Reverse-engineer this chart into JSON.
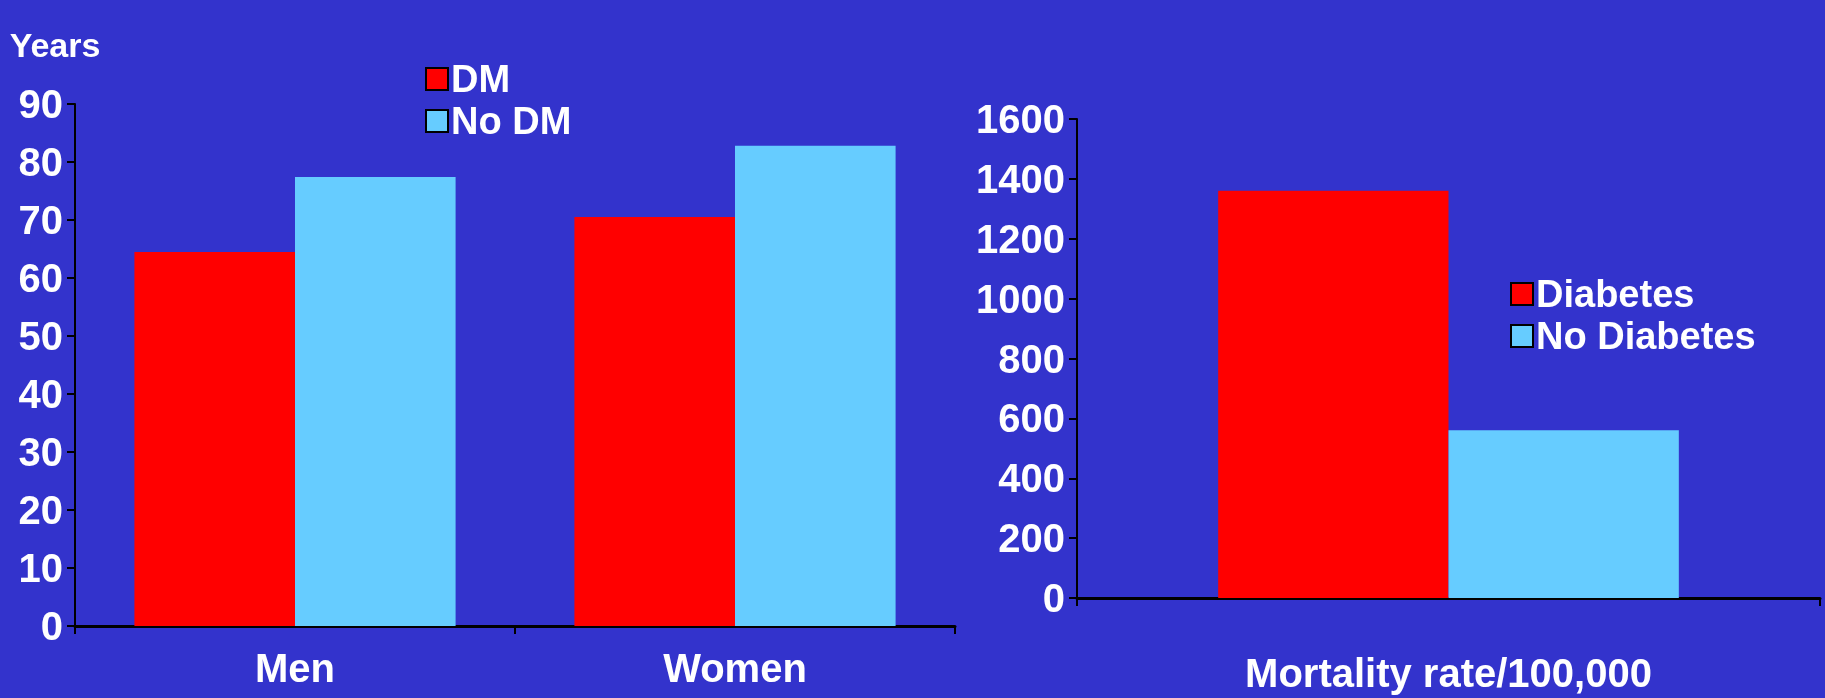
{
  "chart_data": [
    {
      "type": "bar",
      "ylabel": "Years",
      "categories": [
        "Men",
        "Women"
      ],
      "series": [
        {
          "name": "DM",
          "color": "#ff0000",
          "values": [
            64.5,
            70.5
          ]
        },
        {
          "name": "No DM",
          "color": "#66ccff",
          "values": [
            77.4,
            82.8
          ]
        }
      ],
      "ylim": [
        0,
        90
      ],
      "yticks": [
        0,
        10,
        20,
        30,
        40,
        50,
        60,
        70,
        80,
        90
      ],
      "grid": false,
      "legend": "top"
    },
    {
      "type": "bar",
      "xlabel": "Mortality rate/100,000",
      "categories": [
        null
      ],
      "series": [
        {
          "name": "Diabetes",
          "color": "#ff0000",
          "values": [
            1360
          ]
        },
        {
          "name": "No Diabetes",
          "color": "#66ccff",
          "values": [
            560
          ]
        }
      ],
      "ylim": [
        0,
        1600
      ],
      "yticks": [
        0,
        200,
        400,
        600,
        800,
        1000,
        1200,
        1400,
        1600
      ],
      "grid": false,
      "legend": "right"
    }
  ]
}
